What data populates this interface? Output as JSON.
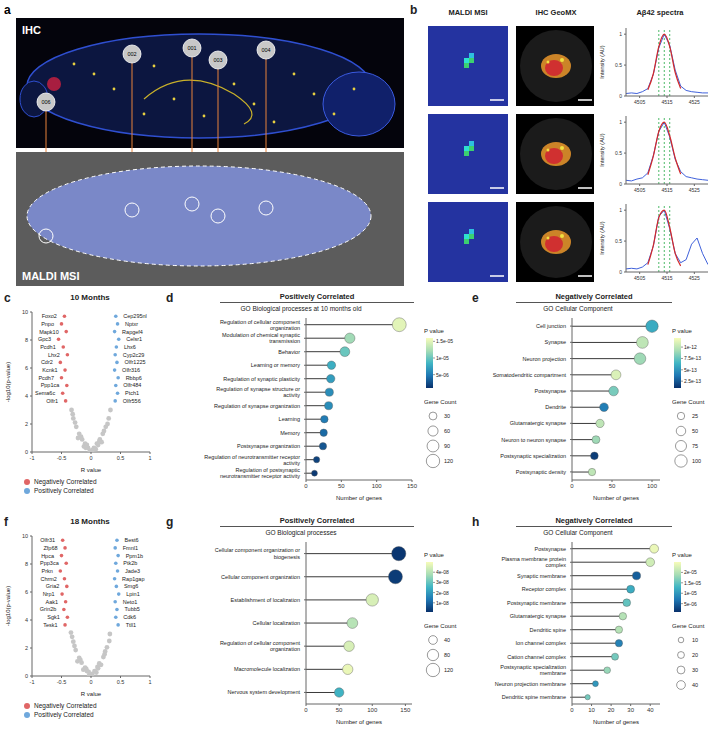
{
  "panel_a": {
    "letter": "a",
    "top_label": "IHC",
    "bottom_label": "MALDI MSI",
    "regions": [
      "006",
      "002",
      "001",
      "003",
      "004"
    ]
  },
  "panel_b": {
    "letter": "b",
    "column_heads": [
      "MALDI MSI",
      "IHC GeoMX",
      "Aβ42 spectra"
    ]
  },
  "chart_data": [
    {
      "type": "line",
      "panel": "b",
      "y_label": "Intensity (AU)",
      "x": [
        4500,
        4502,
        4504,
        4506,
        4508,
        4510,
        4512,
        4514,
        4516,
        4518,
        4520,
        4522,
        4524,
        4526,
        4528,
        4530
      ],
      "xlim": [
        4500,
        4530
      ],
      "xticks": [
        4505,
        4515,
        4525
      ],
      "ylim": [
        0,
        1.1
      ],
      "yticks": [
        0,
        0.5,
        1
      ],
      "reference_lines": [
        4512,
        4514,
        4516
      ],
      "series": [
        {
          "color": "#2a4fd6",
          "values": [
            0.04,
            0.05,
            0.04,
            0.07,
            0.12,
            0.35,
            0.78,
            1.0,
            0.82,
            0.42,
            0.16,
            0.09,
            0.07,
            0.06,
            0.05,
            0.05
          ]
        },
        {
          "color": "#d42a2a",
          "values": [
            null,
            null,
            null,
            null,
            0.1,
            0.36,
            0.8,
            1.0,
            0.8,
            0.38,
            0.12,
            null,
            null,
            null,
            null,
            null
          ]
        }
      ]
    },
    {
      "type": "line",
      "panel": "b",
      "y_label": "Intensity (AU)",
      "x": [
        4500,
        4502,
        4504,
        4506,
        4508,
        4510,
        4512,
        4514,
        4516,
        4518,
        4520,
        4522,
        4524,
        4526,
        4528,
        4530
      ],
      "xlim": [
        4500,
        4530
      ],
      "xticks": [
        4505,
        4515,
        4525
      ],
      "ylim": [
        0,
        1.1
      ],
      "yticks": [
        0,
        0.5,
        1
      ],
      "reference_lines": [
        4512,
        4514,
        4516
      ],
      "series": [
        {
          "color": "#2a4fd6",
          "values": [
            0.06,
            0.05,
            0.08,
            0.1,
            0.18,
            0.46,
            0.85,
            1.0,
            0.76,
            0.4,
            0.2,
            0.12,
            0.1,
            0.08,
            0.07,
            0.06
          ]
        },
        {
          "color": "#d42a2a",
          "values": [
            null,
            null,
            null,
            null,
            0.15,
            0.45,
            0.85,
            1.0,
            0.78,
            0.42,
            0.16,
            null,
            null,
            null,
            null,
            null
          ]
        }
      ]
    },
    {
      "type": "line",
      "panel": "b",
      "y_label": "Intensity (AU)",
      "x": [
        4500,
        4502,
        4504,
        4506,
        4508,
        4510,
        4512,
        4514,
        4516,
        4518,
        4520,
        4522,
        4524,
        4526,
        4528,
        4530
      ],
      "xlim": [
        4500,
        4530
      ],
      "xticks": [
        4505,
        4515,
        4525
      ],
      "ylim": [
        0,
        1.1
      ],
      "yticks": [
        0,
        0.5,
        1
      ],
      "reference_lines": [
        4512,
        4514,
        4516
      ],
      "series": [
        {
          "color": "#2a4fd6",
          "values": [
            0.05,
            0.06,
            0.05,
            0.08,
            0.15,
            0.42,
            0.9,
            1.0,
            0.7,
            0.3,
            0.15,
            0.2,
            0.45,
            0.55,
            0.3,
            0.12
          ]
        },
        {
          "color": "#d42a2a",
          "values": [
            null,
            null,
            null,
            null,
            0.12,
            0.43,
            0.88,
            1.0,
            0.72,
            0.3,
            0.1,
            null,
            null,
            null,
            null,
            null
          ]
        }
      ]
    },
    {
      "type": "scatter",
      "panel": "c",
      "title": "10 Months",
      "x_label": "R value",
      "y_label": "-log10(p-value)",
      "xlim": [
        -1,
        1
      ],
      "xticks": [
        -1,
        -0.5,
        0,
        0.5,
        1
      ],
      "ylim": [
        0,
        10
      ],
      "yticks": [
        0,
        2,
        4,
        6,
        8,
        10
      ],
      "legend": "bottom",
      "series": [
        {
          "color": "#c6c6c6",
          "x": [
            0,
            -0.05,
            0.05,
            -0.1,
            0.1,
            -0.15,
            0.15,
            -0.2,
            0.2,
            -0.25,
            0.25,
            -0.3,
            0.3,
            -0.33,
            0.33,
            -0.02,
            0.08,
            -0.12,
            0.18,
            -0.22,
            -0.07,
            0.12,
            -0.17,
            0.22,
            -0.27,
            0.28,
            -0.31,
            0.03,
            -0.09,
            0.14
          ],
          "y": [
            0.1,
            0.3,
            0.3,
            0.6,
            0.6,
            0.9,
            0.9,
            1.3,
            1.3,
            1.8,
            1.8,
            2.4,
            2.4,
            3.0,
            3.0,
            0.05,
            0.2,
            0.4,
            0.7,
            1.0,
            0.5,
            0.5,
            1.1,
            1.5,
            2.1,
            2.0,
            2.7,
            0.15,
            0.3,
            0.75
          ]
        },
        {
          "name": "Negatively Correlated",
          "color": "#e06666",
          "x": [
            -0.45,
            -0.5,
            -0.42,
            -0.55,
            -0.47,
            -0.4,
            -0.52,
            -0.44,
            -0.5,
            -0.41,
            -0.48,
            -0.43
          ],
          "y": [
            9.7,
            9.15,
            8.6,
            8.05,
            7.5,
            6.95,
            6.4,
            5.85,
            5.3,
            4.75,
            4.2,
            3.65
          ],
          "labels": [
            "Foxo2",
            "Pnpo",
            "Mapk10",
            "Gpc3",
            "Pcdh1",
            "Lhx2",
            "Cdr2",
            "Kcnk1",
            "Pcdh7",
            "Ppp1ca",
            "Sema6c",
            "Olfr1"
          ]
        },
        {
          "name": "Positively Correlated",
          "color": "#6fa8dc",
          "x": [
            0.42,
            0.45,
            0.4,
            0.47,
            0.43,
            0.41,
            0.44,
            0.4,
            0.46,
            0.42,
            0.45,
            0.41
          ],
          "y": [
            9.7,
            9.15,
            8.6,
            8.05,
            7.5,
            6.95,
            6.4,
            5.85,
            5.3,
            4.75,
            4.2,
            3.65
          ],
          "labels": [
            "Cep295nl",
            "Nptxr",
            "Rapgef4",
            "Celsr1",
            "Lhx6",
            "Cyp2c29",
            "Olfr1225",
            "Olfr316",
            "Rbbp6",
            "Olfr484",
            "Ptch1",
            "Olfr556"
          ]
        }
      ]
    },
    {
      "type": "lollipop",
      "panel": "d",
      "header": "Positively Correlated",
      "title": "GO Biological processes at 10 months old",
      "x_label": "Number of genes",
      "orientation": "horizontal",
      "categories": [
        "Regulation of cellular component organization",
        "Modulation of chemical synaptic transmission",
        "Behavior",
        "Learning or memory",
        "Regulation of synaptic plasticity",
        "Regulation of synapse structure or activity",
        "Regulation of synapse organization",
        "Learning",
        "Memory",
        "Postsynapse organization",
        "Regulation of neurotransmitter receptor activity",
        "Regulation of postsynaptic neurotransmitter receptor activity"
      ],
      "values": [
        132,
        62,
        55,
        36,
        35,
        33,
        32,
        26,
        25,
        24,
        15,
        12
      ],
      "p_values": [
        1.5e-05,
        1.2e-05,
        1e-05,
        8e-06,
        7e-06,
        6e-06,
        6e-06,
        5e-06,
        4e-06,
        3e-06,
        2e-06,
        1.5e-06
      ],
      "xlim": [
        0,
        150
      ],
      "xticks": [
        0,
        50,
        100,
        150
      ],
      "color_bar": {
        "title": "P value",
        "range": [
          1e-06,
          1.6e-05
        ],
        "ticks": [
          {
            "value": 5e-06,
            "label": "5e-06"
          },
          {
            "value": 1e-05,
            "label": "1e-05"
          },
          {
            "value": 1.5e-05,
            "label": "1.5e-05"
          }
        ],
        "colors": [
          "#08306b",
          "#1f78b4",
          "#41b6c4",
          "#a8ddb5",
          "#f7fcb9"
        ]
      },
      "size_legend": {
        "title": "Gene Count",
        "values": [
          30,
          60,
          90,
          120
        ]
      }
    },
    {
      "type": "lollipop",
      "panel": "e",
      "header": "Negatively Correlated",
      "title": "GO Cellular Component",
      "x_label": "Number of genes",
      "orientation": "horizontal",
      "categories": [
        "Cell junction",
        "Synapse",
        "Neuron projection",
        "Somatodendritic compartment",
        "Postsynapse",
        "Dendrite",
        "Glutamatergic synapse",
        "Neuron to neuron synapse",
        "Postsynaptic specialization",
        "Postsynaptic density"
      ],
      "values": [
        100,
        88,
        85,
        55,
        52,
        40,
        35,
        30,
        28,
        25
      ],
      "p_values": [
        6e-13,
        1e-12,
        9e-13,
        1.1e-12,
        8e-13,
        4e-13,
        1e-12,
        9e-13,
        1.5e-13,
        1e-12
      ],
      "xlim": [
        0,
        110
      ],
      "xticks": [
        0,
        50,
        100
      ],
      "color_bar": {
        "title": "P value",
        "range": [
          1e-13,
          1.2e-12
        ],
        "ticks": [
          {
            "value": 2.5e-13,
            "label": "2.5e-13"
          },
          {
            "value": 5e-13,
            "label": "5e-13"
          },
          {
            "value": 7.5e-13,
            "label": "7.5e-13"
          },
          {
            "value": 1e-12,
            "label": "1e-12"
          }
        ],
        "colors": [
          "#08306b",
          "#1f78b4",
          "#41b6c4",
          "#a8ddb5",
          "#f7fcb9"
        ]
      },
      "size_legend": {
        "title": "Gene Count",
        "values": [
          25,
          50,
          75,
          100
        ]
      }
    },
    {
      "type": "scatter",
      "panel": "f",
      "title": "18 Months",
      "x_label": "R value",
      "y_label": "-log10(p-value)",
      "xlim": [
        -1,
        1
      ],
      "xticks": [
        -1,
        -0.5,
        0,
        0.5,
        1
      ],
      "ylim": [
        0,
        10
      ],
      "yticks": [
        0,
        2,
        4,
        6,
        8,
        10
      ],
      "legend": "bottom",
      "series": [
        {
          "color": "#c6c6c6",
          "x": [
            0,
            -0.04,
            0.06,
            -0.1,
            0.11,
            -0.16,
            0.14,
            -0.2,
            0.21,
            -0.26,
            0.24,
            -0.3,
            0.31,
            -0.34,
            0.32,
            -0.03,
            0.09,
            -0.13,
            0.17,
            -0.23,
            -0.08,
            0.12,
            -0.18,
            0.23,
            -0.28,
            0.27,
            -0.32,
            0.02,
            -0.07,
            0.15
          ],
          "y": [
            0.1,
            0.3,
            0.35,
            0.6,
            0.65,
            0.95,
            0.9,
            1.3,
            1.35,
            1.85,
            1.75,
            2.45,
            2.5,
            3.1,
            3.0,
            0.05,
            0.25,
            0.45,
            0.8,
            1.05,
            0.5,
            0.55,
            1.15,
            1.55,
            2.15,
            2.05,
            2.8,
            0.15,
            0.35,
            0.8
          ]
        },
        {
          "name": "Negatively Correlated",
          "color": "#e06666",
          "x": [
            -0.48,
            -0.44,
            -0.5,
            -0.42,
            -0.52,
            -0.45,
            -0.41,
            -0.49,
            -0.43,
            -0.46,
            -0.4,
            -0.44
          ],
          "y": [
            9.7,
            9.15,
            8.6,
            8.05,
            7.5,
            6.95,
            6.4,
            5.85,
            5.3,
            4.75,
            4.2,
            3.65
          ],
          "labels": [
            "Olfr31",
            "Zfp68",
            "Hpca",
            "Ppp3ca",
            "Prkn",
            "Chrm2",
            "Gria2",
            "Nrp1",
            "Aak1",
            "Grin2b",
            "Sgk1",
            "Tesk1"
          ]
        },
        {
          "name": "Positively Correlated",
          "color": "#6fa8dc",
          "x": [
            0.44,
            0.41,
            0.46,
            0.42,
            0.45,
            0.4,
            0.43,
            0.47,
            0.41,
            0.44,
            0.42,
            0.46
          ],
          "y": [
            9.7,
            9.15,
            8.6,
            8.05,
            7.5,
            6.95,
            6.4,
            5.85,
            5.3,
            4.75,
            4.2,
            3.65
          ],
          "labels": [
            "Best6",
            "Fmnl1",
            "Ppm1b",
            "Ptk2b",
            "Jade3",
            "Rap1gap",
            "Smg6",
            "Lpin1",
            "Neto1",
            "Tubb5",
            "Cdk6",
            "Ttll1"
          ]
        }
      ]
    },
    {
      "type": "lollipop",
      "panel": "g",
      "header": "Positively Correlated",
      "title": "GO Biological processes",
      "x_label": "Number of genes",
      "orientation": "horizontal",
      "categories": [
        "Cellular component organization or biogenesis",
        "Cellular component organization",
        "Establishment of localization",
        "Cellular localization",
        "Regulation of cellular component organization",
        "Macromolecule localization",
        "Nervous system development"
      ],
      "values": [
        140,
        135,
        100,
        70,
        65,
        63,
        50
      ],
      "p_values": [
        2e-09,
        3e-09,
        4.5e-08,
        4e-08,
        4.5e-08,
        4.8e-08,
        2.5e-08
      ],
      "xlim": [
        0,
        160
      ],
      "xticks": [
        0,
        50,
        100,
        150
      ],
      "color_bar": {
        "title": "P value",
        "range": [
          1e-09,
          5e-08
        ],
        "ticks": [
          {
            "value": 1e-08,
            "label": "1e-08"
          },
          {
            "value": 2e-08,
            "label": "2e-08"
          },
          {
            "value": 3e-08,
            "label": "3e-08"
          },
          {
            "value": 4e-08,
            "label": "4e-08"
          }
        ],
        "colors": [
          "#08306b",
          "#1f78b4",
          "#41b6c4",
          "#a8ddb5",
          "#f7fcb9"
        ]
      },
      "size_legend": {
        "title": "Gene Count",
        "values": [
          40,
          80,
          120
        ]
      }
    },
    {
      "type": "lollipop",
      "panel": "h",
      "header": "Negatively Correlated",
      "title": "GO Cellular Component",
      "x_label": "Number of genes",
      "orientation": "horizontal",
      "categories": [
        "Postsynapse",
        "Plasma membrane protein complex",
        "Synaptic membrane",
        "Receptor complex",
        "Postsynaptic membrane",
        "Glutamatergic synapse",
        "Dendritic spine",
        "Ion channel complex",
        "Cation channel complex",
        "Postsynaptic specialization membrane",
        "Neuron projection membrane",
        "Dendritic spine membrane"
      ],
      "values": [
        42,
        40,
        33,
        30,
        28,
        26,
        24,
        24,
        22,
        18,
        12,
        8
      ],
      "p_values": [
        2.4e-05,
        2.2e-05,
        5e-06,
        1.2e-05,
        1.5e-05,
        2e-05,
        2e-05,
        8e-06,
        1.6e-05,
        1.8e-05,
        1e-05,
        1.6e-05
      ],
      "xlim": [
        0,
        45
      ],
      "xticks": [
        0,
        10,
        20,
        30,
        40
      ],
      "color_bar": {
        "title": "P value",
        "range": [
          1e-06,
          2.5e-05
        ],
        "ticks": [
          {
            "value": 5e-06,
            "label": "5e-06"
          },
          {
            "value": 1e-05,
            "label": "1e-05"
          },
          {
            "value": 1.5e-05,
            "label": "1.5e-05"
          },
          {
            "value": 2e-05,
            "label": "2e-05"
          }
        ],
        "colors": [
          "#08306b",
          "#1f78b4",
          "#41b6c4",
          "#a8ddb5",
          "#f7fcb9"
        ]
      },
      "size_legend": {
        "title": "Gene Count",
        "values": [
          10,
          20,
          30,
          40
        ]
      }
    }
  ]
}
